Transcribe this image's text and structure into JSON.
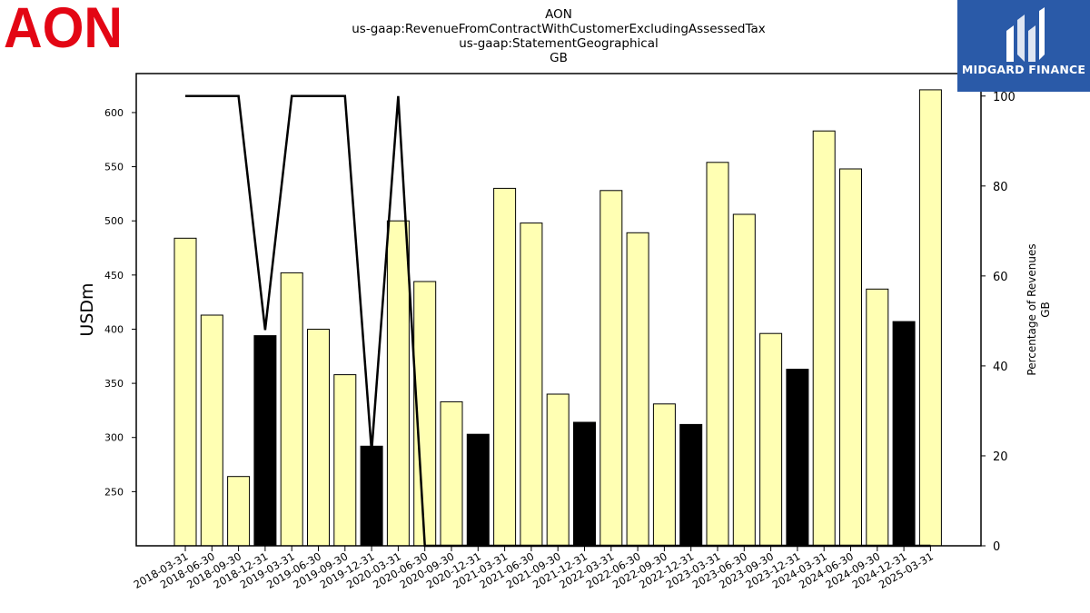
{
  "logos": {
    "left_text": "AON",
    "right_text": "MIDGARD FINANCE",
    "left_color": "#e30614",
    "right_bg": "#2a5aa8"
  },
  "chart_data": {
    "type": "bar",
    "title_lines": [
      "AON",
      "us-gaap:RevenueFromContractWithCustomerExcludingAssessedTax",
      "us-gaap:StatementGeographical",
      "GB"
    ],
    "ylabel": "USDm",
    "y2label_lines": [
      "Percentage of Revenues",
      "GB"
    ],
    "ylim": [
      200,
      636
    ],
    "y2lim": [
      0,
      105
    ],
    "yticks": [
      250,
      300,
      350,
      400,
      450,
      500,
      550,
      600
    ],
    "y2ticks": [
      0,
      20,
      40,
      60,
      80,
      100
    ],
    "categories": [
      "2018-03-31",
      "2018-06-30",
      "2018-09-30",
      "2018-12-31",
      "2019-03-31",
      "2019-06-30",
      "2019-09-30",
      "2019-12-31",
      "2020-03-31",
      "2020-06-30",
      "2020-09-30",
      "2020-12-31",
      "2021-03-31",
      "2021-06-30",
      "2021-09-30",
      "2021-12-31",
      "2022-03-31",
      "2022-06-30",
      "2022-09-30",
      "2022-12-31",
      "2023-03-31",
      "2023-06-30",
      "2023-09-30",
      "2023-12-31",
      "2024-03-31",
      "2024-06-30",
      "2024-09-30",
      "2024-12-31",
      "2025-03-31"
    ],
    "bar_values": [
      484,
      413,
      264,
      394,
      452,
      400,
      358,
      292,
      500,
      444,
      333,
      303,
      530,
      498,
      340,
      314,
      528,
      489,
      331,
      312,
      554,
      506,
      396,
      363,
      583,
      548,
      437,
      407,
      621
    ],
    "bar_highlight": [
      false,
      false,
      false,
      true,
      false,
      false,
      false,
      true,
      false,
      false,
      false,
      true,
      false,
      false,
      false,
      true,
      false,
      false,
      false,
      true,
      false,
      false,
      false,
      true,
      false,
      false,
      false,
      true,
      false
    ],
    "line_values": [
      100,
      100,
      100,
      48,
      100,
      100,
      100,
      21,
      100,
      0,
      0,
      0,
      0,
      0,
      0,
      0,
      0,
      0,
      0,
      0,
      0,
      0,
      0,
      0,
      0,
      0,
      0,
      0,
      0
    ],
    "colors": {
      "bar_normal": "#ffffb3",
      "bar_highlight": "#000000",
      "bar_edge": "#000000",
      "line": "#000000"
    },
    "grid": false,
    "legend": "none"
  }
}
